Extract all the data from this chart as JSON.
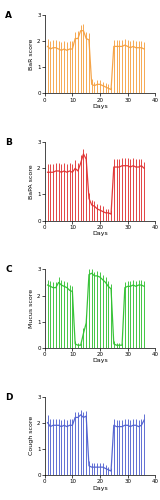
{
  "panels": [
    {
      "label": "A",
      "ylabel": "BaR score",
      "color": "#F5A040",
      "ylim": [
        0,
        3
      ],
      "yticks": [
        0,
        1,
        2,
        3
      ],
      "mean": [
        1.8,
        1.7,
        1.75,
        1.75,
        1.7,
        1.65,
        1.7,
        1.65,
        1.7,
        1.7,
        2.1,
        2.1,
        2.4,
        2.4,
        2.1,
        2.05,
        0.35,
        0.3,
        0.35,
        0.35,
        0.3,
        0.25,
        0.2,
        0.15,
        1.8,
        1.8,
        1.8,
        1.8,
        1.85,
        1.8,
        1.75,
        1.8,
        1.75,
        1.75,
        1.75,
        1.7
      ],
      "sd": [
        0.3,
        0.3,
        0.3,
        0.3,
        0.3,
        0.3,
        0.3,
        0.3,
        0.3,
        0.3,
        0.25,
        0.3,
        0.2,
        0.25,
        0.25,
        0.25,
        0.2,
        0.15,
        0.15,
        0.15,
        0.15,
        0.15,
        0.15,
        0.1,
        0.25,
        0.25,
        0.25,
        0.25,
        0.25,
        0.25,
        0.25,
        0.25,
        0.25,
        0.25,
        0.25,
        0.25
      ]
    },
    {
      "label": "B",
      "ylabel": "BaPA score",
      "color": "#E03030",
      "ylim": [
        0,
        3
      ],
      "yticks": [
        0,
        1,
        2,
        3
      ],
      "mean": [
        1.85,
        1.85,
        1.85,
        1.9,
        1.9,
        1.85,
        1.9,
        1.85,
        1.9,
        1.85,
        2.0,
        1.9,
        2.2,
        2.55,
        2.35,
        0.85,
        0.6,
        0.55,
        0.45,
        0.4,
        0.35,
        0.3,
        0.3,
        0.25,
        2.05,
        2.05,
        2.05,
        2.1,
        2.1,
        2.1,
        2.05,
        2.1,
        2.05,
        2.05,
        2.1,
        2.0
      ],
      "sd": [
        0.3,
        0.3,
        0.3,
        0.3,
        0.3,
        0.3,
        0.3,
        0.3,
        0.3,
        0.3,
        0.3,
        0.3,
        0.3,
        0.2,
        0.25,
        0.2,
        0.2,
        0.2,
        0.2,
        0.2,
        0.2,
        0.15,
        0.15,
        0.15,
        0.3,
        0.3,
        0.3,
        0.3,
        0.3,
        0.3,
        0.3,
        0.3,
        0.3,
        0.3,
        0.25,
        0.25
      ]
    },
    {
      "label": "C",
      "ylabel": "Mucus score",
      "color": "#30C030",
      "ylim": [
        0,
        3
      ],
      "yticks": [
        0,
        1,
        2,
        3
      ],
      "mean": [
        2.4,
        2.35,
        2.3,
        2.3,
        2.5,
        2.4,
        2.35,
        2.3,
        2.2,
        2.15,
        0.15,
        0.1,
        0.1,
        0.55,
        0.95,
        2.8,
        2.85,
        2.75,
        2.75,
        2.7,
        2.6,
        2.5,
        2.35,
        2.25,
        0.15,
        0.1,
        0.1,
        0.1,
        2.3,
        2.35,
        2.35,
        2.4,
        2.35,
        2.4,
        2.4,
        2.35
      ],
      "sd": [
        0.2,
        0.2,
        0.2,
        0.2,
        0.2,
        0.2,
        0.2,
        0.2,
        0.2,
        0.2,
        0.1,
        0.1,
        0.1,
        0.2,
        0.3,
        0.2,
        0.15,
        0.15,
        0.2,
        0.2,
        0.2,
        0.2,
        0.2,
        0.2,
        0.1,
        0.1,
        0.1,
        0.1,
        0.2,
        0.2,
        0.2,
        0.2,
        0.2,
        0.2,
        0.2,
        0.2
      ]
    },
    {
      "label": "D",
      "ylabel": "Cough score",
      "color": "#5060D0",
      "ylim": [
        0,
        3
      ],
      "yticks": [
        0,
        1,
        2,
        3
      ],
      "mean": [
        2.0,
        1.85,
        1.9,
        1.9,
        1.9,
        1.85,
        1.9,
        1.85,
        1.9,
        1.9,
        2.2,
        2.2,
        2.3,
        2.2,
        2.25,
        0.35,
        0.3,
        0.3,
        0.3,
        0.3,
        0.3,
        0.25,
        0.2,
        0.15,
        1.9,
        1.85,
        1.85,
        1.85,
        1.9,
        1.9,
        1.85,
        1.9,
        1.9,
        1.85,
        1.9,
        2.1
      ],
      "sd": [
        0.3,
        0.3,
        0.25,
        0.25,
        0.25,
        0.25,
        0.25,
        0.25,
        0.25,
        0.25,
        0.2,
        0.2,
        0.2,
        0.2,
        0.2,
        0.2,
        0.15,
        0.15,
        0.15,
        0.15,
        0.15,
        0.15,
        0.1,
        0.1,
        0.25,
        0.25,
        0.25,
        0.25,
        0.25,
        0.25,
        0.25,
        0.25,
        0.25,
        0.25,
        0.25,
        0.25
      ]
    }
  ],
  "xlabel": "Days",
  "xlim": [
    0,
    40
  ],
  "xticks": [
    0,
    10,
    20,
    30,
    40
  ],
  "days": [
    1,
    2,
    3,
    4,
    5,
    6,
    7,
    8,
    9,
    10,
    11,
    12,
    13,
    14,
    15,
    16,
    17,
    18,
    19,
    20,
    21,
    22,
    23,
    24,
    25,
    26,
    27,
    28,
    29,
    30,
    31,
    32,
    33,
    34,
    35,
    36
  ]
}
